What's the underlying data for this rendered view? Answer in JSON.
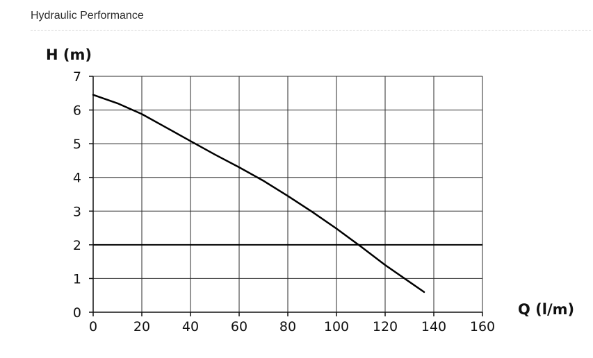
{
  "header": {
    "title": "Hydraulic Performance"
  },
  "chart_data": {
    "type": "line",
    "xlabel": "Q (l/m)",
    "ylabel": "H (m)",
    "xlim": [
      0,
      160
    ],
    "ylim": [
      0,
      7
    ],
    "xticks": [
      0,
      20,
      40,
      60,
      80,
      100,
      120,
      140,
      160
    ],
    "yticks": [
      0,
      1,
      2,
      3,
      4,
      5,
      6,
      7
    ],
    "grid": true,
    "reference_line_y": 2,
    "series": [
      {
        "x": [
          0,
          10,
          20,
          30,
          40,
          50,
          60,
          70,
          80,
          90,
          100,
          110,
          120,
          130,
          136
        ],
        "y": [
          6.45,
          6.2,
          5.88,
          5.48,
          5.08,
          4.68,
          4.3,
          3.9,
          3.45,
          2.98,
          2.48,
          1.95,
          1.4,
          0.9,
          0.6
        ]
      }
    ],
    "colors": {
      "curve": "#000000",
      "grid": "#2b2b2b",
      "axis": "#111111"
    }
  }
}
